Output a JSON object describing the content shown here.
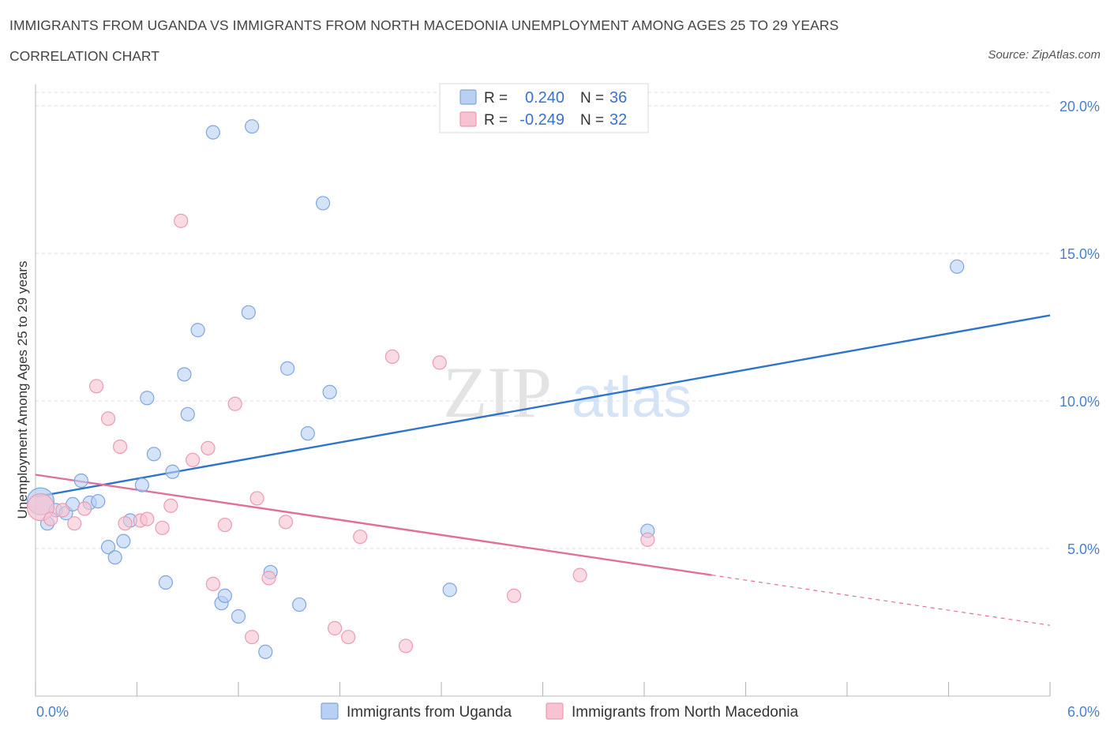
{
  "header": {
    "title": "IMMIGRANTS FROM UGANDA VS IMMIGRANTS FROM NORTH MACEDONIA UNEMPLOYMENT AMONG AGES 25 TO 29 YEARS",
    "subtitle": "CORRELATION CHART",
    "source": "Source: ZipAtlas.com"
  },
  "watermark": {
    "zip": "ZIP",
    "atlas": "atlas"
  },
  "colors": {
    "uganda_fill": "#b8d0f2",
    "uganda_stroke": "#7ea6e0",
    "uganda_line": "#2e74cc",
    "macedonia_fill": "#f7c3d2",
    "macedonia_stroke": "#ec9ab2",
    "macedonia_line": "#e0709a",
    "grid": "#dcdcdc",
    "tick_text": "#4a7fcc"
  },
  "chart_data": {
    "type": "scatter",
    "title": "IMMIGRANTS FROM UGANDA VS IMMIGRANTS FROM NORTH MACEDONIA UNEMPLOYMENT AMONG AGES 25 TO 29 YEARS",
    "xlabel": "",
    "ylabel": "Unemployment Among Ages 25 to 29 years",
    "xlim": [
      0,
      6
    ],
    "ylim": [
      0,
      20
    ],
    "x_tick_labels": [
      "0.0%",
      "6.0%"
    ],
    "y_ticks": [
      {
        "value": 5,
        "label": "5.0%"
      },
      {
        "value": 10,
        "label": "10.0%"
      },
      {
        "value": 15,
        "label": "15.0%"
      },
      {
        "value": 20,
        "label": "20.0%"
      }
    ],
    "legend_stats": [
      {
        "r_label": "R =",
        "r_value": "0.240",
        "n_label": "N =",
        "n_value": "36"
      },
      {
        "r_label": "R =",
        "r_value": "-0.249",
        "n_label": "N =",
        "n_value": "32"
      }
    ],
    "series": [
      {
        "name": "Immigrants from Uganda",
        "trend": {
          "x0": 0.0,
          "y0": 6.75,
          "x1": 6.0,
          "y1": 12.9,
          "solid_to": 6.0
        },
        "points": [
          {
            "x": 0.03,
            "y": 6.6,
            "big": true
          },
          {
            "x": 0.07,
            "y": 5.85
          },
          {
            "x": 0.12,
            "y": 6.3
          },
          {
            "x": 0.18,
            "y": 6.2
          },
          {
            "x": 0.22,
            "y": 6.5
          },
          {
            "x": 0.27,
            "y": 7.3
          },
          {
            "x": 0.32,
            "y": 6.55
          },
          {
            "x": 0.37,
            "y": 6.6
          },
          {
            "x": 0.43,
            "y": 5.05
          },
          {
            "x": 0.47,
            "y": 4.7
          },
          {
            "x": 0.52,
            "y": 5.25
          },
          {
            "x": 0.56,
            "y": 5.95
          },
          {
            "x": 0.63,
            "y": 7.15
          },
          {
            "x": 0.66,
            "y": 10.1
          },
          {
            "x": 0.7,
            "y": 8.2
          },
          {
            "x": 0.77,
            "y": 3.85
          },
          {
            "x": 0.81,
            "y": 7.6
          },
          {
            "x": 0.88,
            "y": 10.9
          },
          {
            "x": 0.9,
            "y": 9.55
          },
          {
            "x": 0.96,
            "y": 12.4
          },
          {
            "x": 1.05,
            "y": 19.1
          },
          {
            "x": 1.1,
            "y": 3.15
          },
          {
            "x": 1.12,
            "y": 3.4
          },
          {
            "x": 1.2,
            "y": 2.7
          },
          {
            "x": 1.26,
            "y": 13.0
          },
          {
            "x": 1.28,
            "y": 19.3
          },
          {
            "x": 1.36,
            "y": 1.5
          },
          {
            "x": 1.39,
            "y": 4.2
          },
          {
            "x": 1.49,
            "y": 11.1
          },
          {
            "x": 1.56,
            "y": 3.1
          },
          {
            "x": 1.61,
            "y": 8.9
          },
          {
            "x": 1.7,
            "y": 16.7
          },
          {
            "x": 1.74,
            "y": 10.3
          },
          {
            "x": 2.45,
            "y": 3.6
          },
          {
            "x": 3.62,
            "y": 5.6
          },
          {
            "x": 5.45,
            "y": 14.55
          }
        ]
      },
      {
        "name": "Immigrants from North Macedonia",
        "trend": {
          "x0": 0.0,
          "y0": 7.5,
          "x1": 6.0,
          "y1": 2.4,
          "solid_to": 4.0
        },
        "points": [
          {
            "x": 0.03,
            "y": 6.4,
            "big": true
          },
          {
            "x": 0.09,
            "y": 6.0
          },
          {
            "x": 0.16,
            "y": 6.3
          },
          {
            "x": 0.23,
            "y": 5.85
          },
          {
            "x": 0.29,
            "y": 6.35
          },
          {
            "x": 0.36,
            "y": 10.5
          },
          {
            "x": 0.43,
            "y": 9.4
          },
          {
            "x": 0.5,
            "y": 8.45
          },
          {
            "x": 0.53,
            "y": 5.85
          },
          {
            "x": 0.62,
            "y": 5.95
          },
          {
            "x": 0.66,
            "y": 6.0
          },
          {
            "x": 0.75,
            "y": 5.7
          },
          {
            "x": 0.8,
            "y": 6.45
          },
          {
            "x": 0.86,
            "y": 16.1
          },
          {
            "x": 0.93,
            "y": 8.0
          },
          {
            "x": 1.02,
            "y": 8.4
          },
          {
            "x": 1.05,
            "y": 3.8
          },
          {
            "x": 1.12,
            "y": 5.8
          },
          {
            "x": 1.18,
            "y": 9.9
          },
          {
            "x": 1.28,
            "y": 2.0
          },
          {
            "x": 1.31,
            "y": 6.7
          },
          {
            "x": 1.38,
            "y": 4.0
          },
          {
            "x": 1.48,
            "y": 5.9
          },
          {
            "x": 1.77,
            "y": 2.3
          },
          {
            "x": 1.85,
            "y": 2.0
          },
          {
            "x": 1.92,
            "y": 5.4
          },
          {
            "x": 2.11,
            "y": 11.5
          },
          {
            "x": 2.19,
            "y": 1.7
          },
          {
            "x": 2.39,
            "y": 11.3
          },
          {
            "x": 2.83,
            "y": 3.4
          },
          {
            "x": 3.22,
            "y": 4.1
          },
          {
            "x": 3.62,
            "y": 5.3
          }
        ]
      }
    ]
  }
}
